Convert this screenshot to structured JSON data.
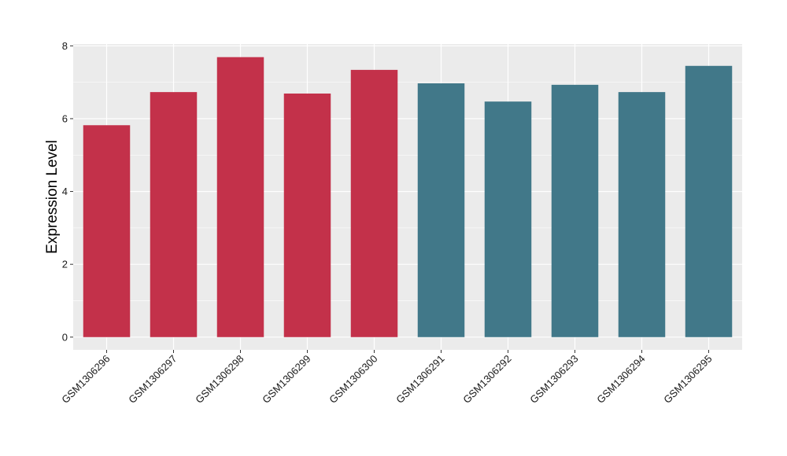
{
  "chart_data": {
    "type": "bar",
    "title": "",
    "xlabel": "",
    "ylabel": "Expression Level",
    "ylim": [
      -0.35,
      8.05
    ],
    "yticks": [
      0,
      2,
      4,
      6,
      8
    ],
    "grid": true,
    "categories": [
      "GSM1306296",
      "GSM1306297",
      "GSM1306298",
      "GSM1306299",
      "GSM1306300",
      "GSM1306291",
      "GSM1306292",
      "GSM1306293",
      "GSM1306294",
      "GSM1306295"
    ],
    "values": [
      5.82,
      6.73,
      7.69,
      6.69,
      7.34,
      6.97,
      6.47,
      6.93,
      6.73,
      7.45
    ],
    "groups": [
      "a",
      "a",
      "a",
      "a",
      "a",
      "b",
      "b",
      "b",
      "b",
      "b"
    ],
    "colors": {
      "a": "#c3314a",
      "b": "#417889"
    },
    "panel_background": "#ebebeb",
    "gridline_color": "#ffffff"
  }
}
